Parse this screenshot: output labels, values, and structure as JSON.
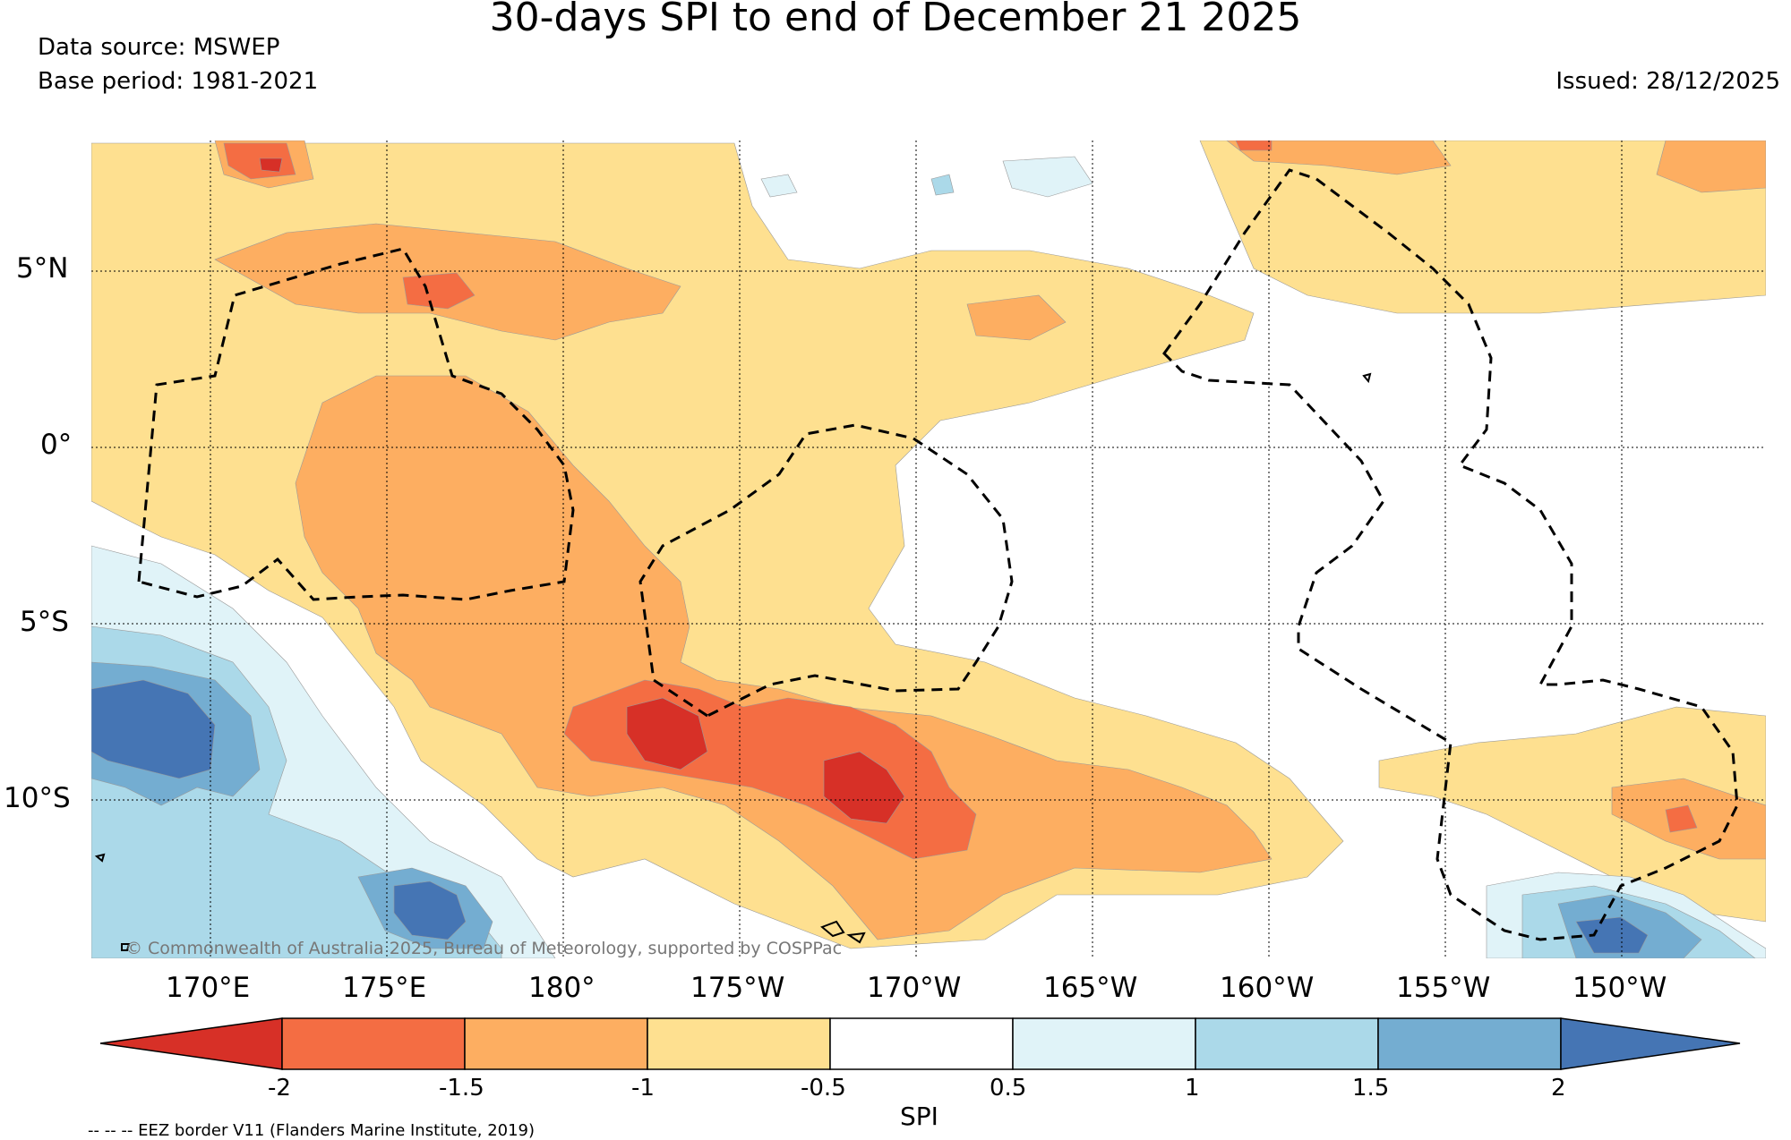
{
  "title": "30-days SPI to end of December 21 2025",
  "data_source": "Data source: MSWEP",
  "base_period": "Base period: 1981-2021",
  "issued": "Issued: 28/12/2025",
  "lat_labels": [
    "5°N",
    "0°",
    "5°S",
    "10°S"
  ],
  "lon_labels": [
    "170°E",
    "175°E",
    "180°",
    "175°W",
    "170°W",
    "165°W",
    "160°W",
    "155°W",
    "150°W"
  ],
  "copyright": "© Commonwealth of Australia 2025, Bureau of Meteorology, supported by COSPPac",
  "colorbar": {
    "label": "SPI",
    "ticks": [
      "-2",
      "-1.5",
      "-1",
      "-0.5",
      "0.5",
      "1",
      "1.5",
      "2"
    ],
    "colors": {
      "lt_m2": "#d73027",
      "m2_m15": "#f46d43",
      "m15_m1": "#fdae61",
      "m1_m05": "#fee090",
      "neutral": "#ffffff",
      "p05_p1": "#e0f3f8",
      "p1_p15": "#abd9e9",
      "p15_p2": "#74add1",
      "gt_2": "#4575b4"
    }
  },
  "eez_note": "-- -- -- EEZ border V11 (Flanders Marine Institute, 2019)"
}
